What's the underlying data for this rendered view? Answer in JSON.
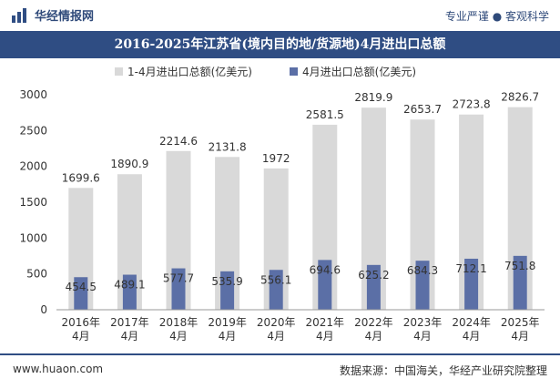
{
  "header": {
    "brand_name": "华经情报网",
    "tagline": "专业严谨 ● 客观科学"
  },
  "footer": {
    "website": "www.huaon.com",
    "source": "数据来源：中国海关，华经产业研究院整理"
  },
  "colors": {
    "brand_blue": "#2f4d83",
    "series1": "#d9d9d9",
    "series2": "#5b6fa6"
  },
  "chart_data": {
    "type": "bar",
    "title": "2016-2025年江苏省(境内目的地/货源地)4月进出口总额",
    "categories": [
      "2016年\n4月",
      "2017年\n4月",
      "2018年\n4月",
      "2019年\n4月",
      "2020年\n4月",
      "2021年\n4月",
      "2022年\n4月",
      "2023年\n4月",
      "2024年\n4月",
      "2025年\n4月"
    ],
    "series": [
      {
        "name": "1-4月进出口总额(亿美元)",
        "values": [
          1699.6,
          1890.9,
          2214.6,
          2131.8,
          1972,
          2581.5,
          2819.9,
          2653.7,
          2723.8,
          2826.7
        ]
      },
      {
        "name": "4月进出口总额(亿美元)",
        "values": [
          454.5,
          489.1,
          577.7,
          535.9,
          556.1,
          694.6,
          625.2,
          684.3,
          712.1,
          751.8
        ]
      }
    ],
    "ylim": [
      0,
      3000
    ],
    "yticks": [
      0,
      500,
      1000,
      1500,
      2000,
      2500,
      3000
    ],
    "legend_position": "top",
    "grid": false
  }
}
